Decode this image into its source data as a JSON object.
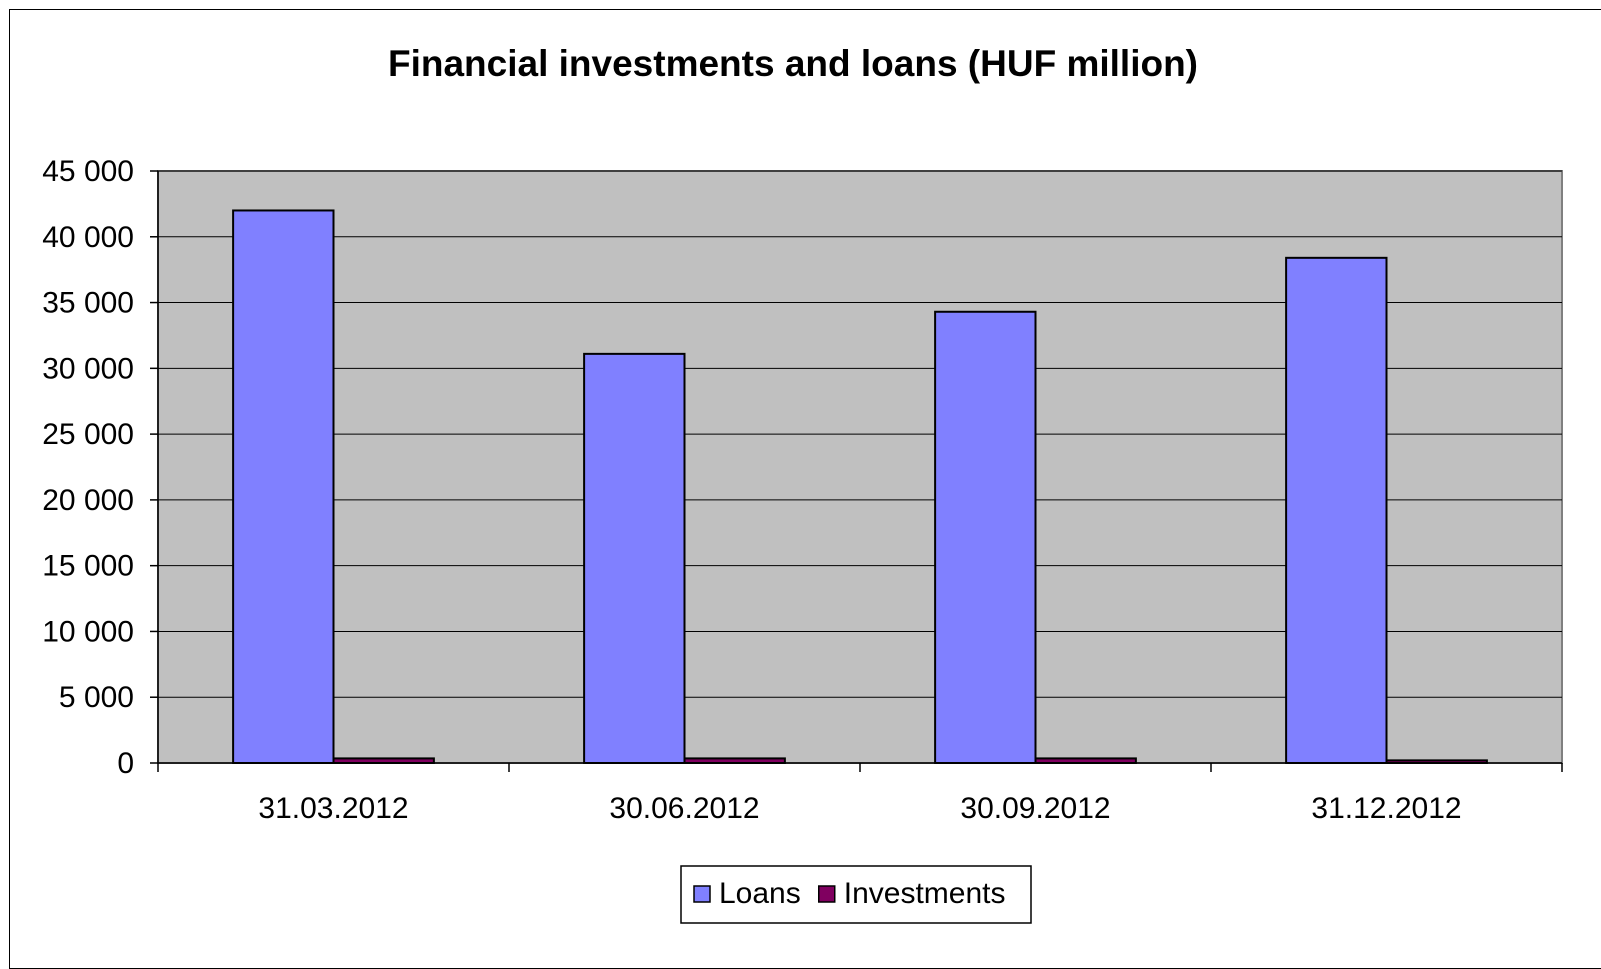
{
  "chart_data": {
    "type": "bar",
    "title": "Financial investments and loans (HUF million)",
    "xlabel": "",
    "ylabel": "",
    "categories": [
      "31.03.2012",
      "30.06.2012",
      "30.09.2012",
      "31.12.2012"
    ],
    "series": [
      {
        "name": "Loans",
        "color": "#8080ff",
        "values": [
          42000,
          31100,
          34300,
          38400
        ]
      },
      {
        "name": "Investments",
        "color": "#800060",
        "values": [
          350,
          350,
          350,
          200
        ]
      }
    ],
    "ylim": [
      0,
      45000
    ],
    "yticks": [
      0,
      5000,
      10000,
      15000,
      20000,
      25000,
      30000,
      35000,
      40000,
      45000
    ],
    "ytick_labels": [
      "0",
      "5 000",
      "10 000",
      "15 000",
      "20 000",
      "25 000",
      "30 000",
      "35 000",
      "40 000",
      "45 000"
    ],
    "grid": true,
    "plot_background": "#c0c0c0",
    "legend_position": "bottom"
  }
}
